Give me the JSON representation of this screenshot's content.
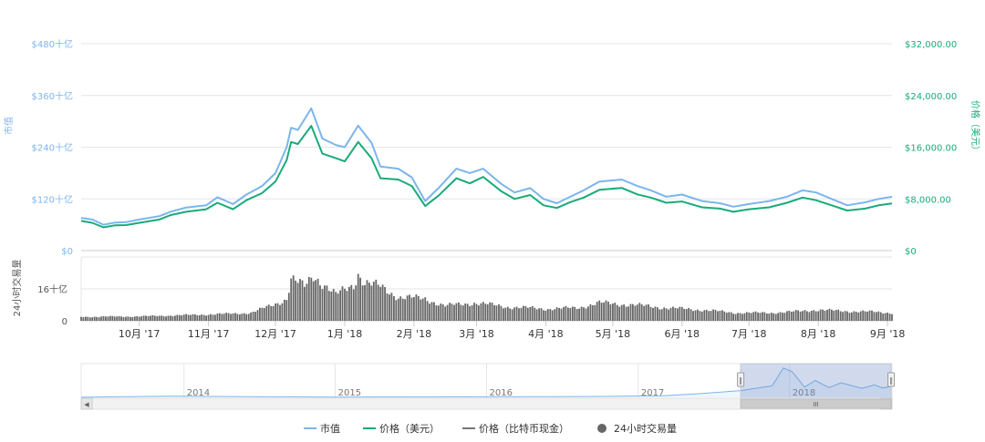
{
  "chart_data": [
    {
      "type": "line",
      "name": "main",
      "y_left_label": "市值",
      "y_right_label": "价格（美元）",
      "y_left_ticks": [
        "$0",
        "$120十亿",
        "$240十亿",
        "$360十亿",
        "$480十亿"
      ],
      "y_right_ticks": [
        "$0",
        "$8,000.00",
        "$16,000.00",
        "$24,000.00",
        "$32,000.00"
      ],
      "y_left_range": [
        0,
        480
      ],
      "y_right_range": [
        0,
        32000
      ],
      "x_ticks": [
        "10月 '17",
        "11月 '17",
        "12月 '17",
        "1月 '18",
        "2月 '18",
        "3月 '18",
        "4月 '18",
        "5月 '18",
        "6月 '18",
        "7月 '18",
        "8月 '18",
        "9月 '18"
      ],
      "x_range": [
        "2017-09-05",
        "2018-09-03"
      ],
      "series": [
        {
          "name": "市值",
          "color": "#7cb5ec",
          "points": [
            [
              "2017-09-05",
              76
            ],
            [
              "2017-09-10",
              72
            ],
            [
              "2017-09-15",
              60
            ],
            [
              "2017-09-20",
              65
            ],
            [
              "2017-09-25",
              66
            ],
            [
              "2017-10-01",
              72
            ],
            [
              "2017-10-10",
              80
            ],
            [
              "2017-10-15",
              90
            ],
            [
              "2017-10-22",
              100
            ],
            [
              "2017-10-31",
              105
            ],
            [
              "2017-11-05",
              124
            ],
            [
              "2017-11-12",
              108
            ],
            [
              "2017-11-18",
              130
            ],
            [
              "2017-11-25",
              150
            ],
            [
              "2017-12-01",
              180
            ],
            [
              "2017-12-06",
              240
            ],
            [
              "2017-12-08",
              285
            ],
            [
              "2017-12-11",
              280
            ],
            [
              "2017-12-17",
              330
            ],
            [
              "2017-12-22",
              260
            ],
            [
              "2017-12-28",
              245
            ],
            [
              "2018-01-01",
              240
            ],
            [
              "2018-01-07",
              290
            ],
            [
              "2018-01-13",
              250
            ],
            [
              "2018-01-17",
              195
            ],
            [
              "2018-01-25",
              190
            ],
            [
              "2018-01-31",
              170
            ],
            [
              "2018-02-06",
              115
            ],
            [
              "2018-02-12",
              145
            ],
            [
              "2018-02-20",
              190
            ],
            [
              "2018-02-26",
              180
            ],
            [
              "2018-03-04",
              190
            ],
            [
              "2018-03-12",
              155
            ],
            [
              "2018-03-18",
              135
            ],
            [
              "2018-03-25",
              145
            ],
            [
              "2018-03-31",
              120
            ],
            [
              "2018-04-06",
              110
            ],
            [
              "2018-04-12",
              125
            ],
            [
              "2018-04-18",
              140
            ],
            [
              "2018-04-25",
              160
            ],
            [
              "2018-05-05",
              165
            ],
            [
              "2018-05-12",
              150
            ],
            [
              "2018-05-18",
              140
            ],
            [
              "2018-05-25",
              125
            ],
            [
              "2018-06-01",
              130
            ],
            [
              "2018-06-10",
              115
            ],
            [
              "2018-06-18",
              110
            ],
            [
              "2018-06-24",
              102
            ],
            [
              "2018-07-01",
              108
            ],
            [
              "2018-07-10",
              115
            ],
            [
              "2018-07-18",
              125
            ],
            [
              "2018-07-25",
              140
            ],
            [
              "2018-07-31",
              135
            ],
            [
              "2018-08-07",
              120
            ],
            [
              "2018-08-14",
              105
            ],
            [
              "2018-08-22",
              112
            ],
            [
              "2018-08-28",
              120
            ],
            [
              "2018-09-03",
              125
            ]
          ]
        },
        {
          "name": "价格（美元）",
          "color": "#1aaa7a",
          "points": [
            [
              "2017-09-05",
              4600
            ],
            [
              "2017-09-10",
              4300
            ],
            [
              "2017-09-15",
              3600
            ],
            [
              "2017-09-20",
              3900
            ],
            [
              "2017-09-25",
              3950
            ],
            [
              "2017-10-01",
              4300
            ],
            [
              "2017-10-10",
              4800
            ],
            [
              "2017-10-15",
              5500
            ],
            [
              "2017-10-22",
              6000
            ],
            [
              "2017-10-31",
              6400
            ],
            [
              "2017-11-05",
              7400
            ],
            [
              "2017-11-12",
              6400
            ],
            [
              "2017-11-18",
              7800
            ],
            [
              "2017-11-25",
              8900
            ],
            [
              "2017-12-01",
              10700
            ],
            [
              "2017-12-06",
              14000
            ],
            [
              "2017-12-08",
              16800
            ],
            [
              "2017-12-11",
              16500
            ],
            [
              "2017-12-17",
              19300
            ],
            [
              "2017-12-22",
              15000
            ],
            [
              "2017-12-28",
              14300
            ],
            [
              "2018-01-01",
              13800
            ],
            [
              "2018-01-07",
              16800
            ],
            [
              "2018-01-13",
              14300
            ],
            [
              "2018-01-17",
              11200
            ],
            [
              "2018-01-25",
              11000
            ],
            [
              "2018-01-31",
              10000
            ],
            [
              "2018-02-06",
              6900
            ],
            [
              "2018-02-12",
              8500
            ],
            [
              "2018-02-20",
              11200
            ],
            [
              "2018-02-26",
              10400
            ],
            [
              "2018-03-04",
              11400
            ],
            [
              "2018-03-12",
              9200
            ],
            [
              "2018-03-18",
              8000
            ],
            [
              "2018-03-25",
              8600
            ],
            [
              "2018-03-31",
              7000
            ],
            [
              "2018-04-06",
              6600
            ],
            [
              "2018-04-12",
              7500
            ],
            [
              "2018-04-18",
              8200
            ],
            [
              "2018-04-25",
              9400
            ],
            [
              "2018-05-05",
              9700
            ],
            [
              "2018-05-12",
              8700
            ],
            [
              "2018-05-18",
              8200
            ],
            [
              "2018-05-25",
              7400
            ],
            [
              "2018-06-01",
              7600
            ],
            [
              "2018-06-10",
              6700
            ],
            [
              "2018-06-18",
              6500
            ],
            [
              "2018-06-24",
              6000
            ],
            [
              "2018-07-01",
              6400
            ],
            [
              "2018-07-10",
              6700
            ],
            [
              "2018-07-18",
              7400
            ],
            [
              "2018-07-25",
              8200
            ],
            [
              "2018-07-31",
              7800
            ],
            [
              "2018-08-07",
              7000
            ],
            [
              "2018-08-14",
              6200
            ],
            [
              "2018-08-22",
              6500
            ],
            [
              "2018-08-28",
              7000
            ],
            [
              "2018-09-03",
              7300
            ]
          ]
        }
      ]
    },
    {
      "type": "bar",
      "name": "volume",
      "y_label": "24小时交易量",
      "y_ticks": [
        "0",
        "16十亿"
      ],
      "y_range": [
        0,
        32
      ],
      "series_name": "24小时交易量",
      "color": "#666666",
      "points": [
        [
          "2017-09-05",
          2.0
        ],
        [
          "2017-10-01",
          2.2
        ],
        [
          "2017-10-20",
          2.8
        ],
        [
          "2017-11-10",
          3.5
        ],
        [
          "2017-11-20",
          4.0
        ],
        [
          "2017-11-30",
          8.0
        ],
        [
          "2017-12-06",
          11.0
        ],
        [
          "2017-12-08",
          21.0
        ],
        [
          "2017-12-14",
          17.0
        ],
        [
          "2017-12-18",
          23.0
        ],
        [
          "2017-12-22",
          19.0
        ],
        [
          "2017-12-28",
          13.0
        ],
        [
          "2018-01-05",
          18.0
        ],
        [
          "2018-01-07",
          24.0
        ],
        [
          "2018-01-10",
          19.0
        ],
        [
          "2018-01-17",
          17.0
        ],
        [
          "2018-01-25",
          12.0
        ],
        [
          "2018-02-06",
          11.0
        ],
        [
          "2018-02-15",
          7.5
        ],
        [
          "2018-02-28",
          9.0
        ],
        [
          "2018-03-15",
          7.0
        ],
        [
          "2018-04-01",
          6.0
        ],
        [
          "2018-04-15",
          6.5
        ],
        [
          "2018-04-25",
          9.0
        ],
        [
          "2018-05-10",
          8.0
        ],
        [
          "2018-05-25",
          6.5
        ],
        [
          "2018-06-10",
          5.5
        ],
        [
          "2018-06-25",
          4.0
        ],
        [
          "2018-07-10",
          4.0
        ],
        [
          "2018-07-20",
          4.5
        ],
        [
          "2018-07-31",
          5.5
        ],
        [
          "2018-08-10",
          5.0
        ],
        [
          "2018-08-25",
          4.5
        ],
        [
          "2018-09-03",
          4.0
        ]
      ]
    },
    {
      "type": "area",
      "name": "navigator",
      "x_ticks": [
        "2014",
        "2015",
        "2016",
        "2017",
        "2018"
      ],
      "x_range": [
        "2013-04-28",
        "2018-09-05"
      ],
      "selection": [
        "2017-09-05",
        "2018-09-03"
      ],
      "color": "#7cb5ec",
      "points": [
        [
          "2013-04-28",
          1.5
        ],
        [
          "2013-11-30",
          13
        ],
        [
          "2014-06-01",
          8
        ],
        [
          "2015-01-15",
          3
        ],
        [
          "2016-01-01",
          6
        ],
        [
          "2016-10-01",
          10
        ],
        [
          "2017-03-01",
          18
        ],
        [
          "2017-06-01",
          42
        ],
        [
          "2017-09-05",
          76
        ],
        [
          "2017-11-20",
          130
        ],
        [
          "2017-12-17",
          330
        ],
        [
          "2018-01-07",
          290
        ],
        [
          "2018-02-06",
          115
        ],
        [
          "2018-03-04",
          190
        ],
        [
          "2018-04-06",
          110
        ],
        [
          "2018-05-05",
          165
        ],
        [
          "2018-06-24",
          102
        ],
        [
          "2018-07-25",
          140
        ],
        [
          "2018-08-14",
          105
        ],
        [
          "2018-09-03",
          125
        ]
      ]
    }
  ],
  "legend": {
    "items": [
      {
        "label": "市值",
        "color": "#7cb5ec",
        "marker": "line"
      },
      {
        "label": "价格（美元）",
        "color": "#1aaa7a",
        "marker": "line"
      },
      {
        "label": "价格（比特币现金）",
        "color": "#777777",
        "marker": "line"
      },
      {
        "label": "24小时交易量",
        "color": "#666666",
        "marker": "circle"
      }
    ]
  },
  "scrollbar": {
    "left_arrow": "◀",
    "right_arrow": "▶",
    "thumb_grip": "III",
    "left_handle_grip": "‖",
    "right_handle_grip": "‖"
  }
}
